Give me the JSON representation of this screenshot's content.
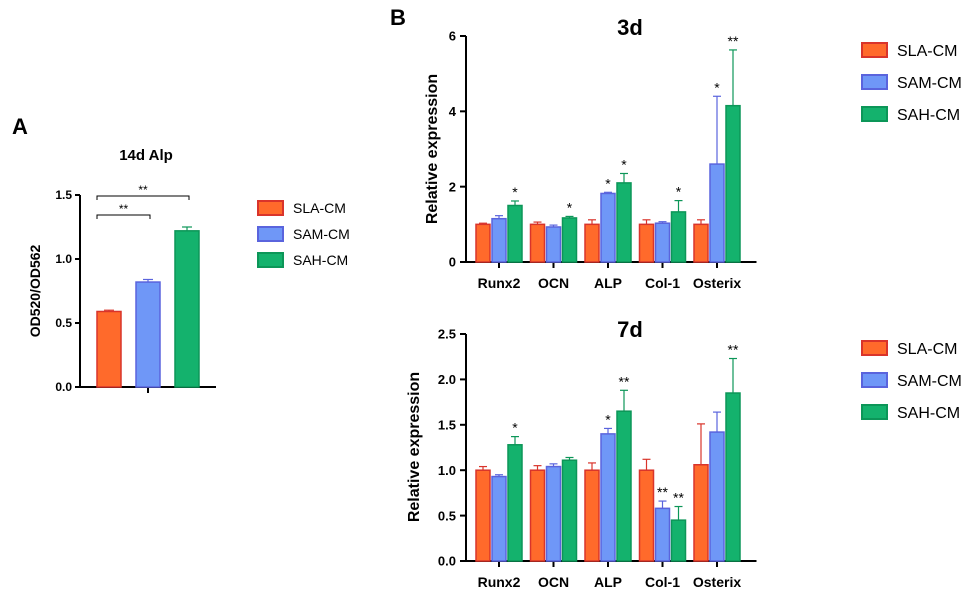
{
  "legend_items": [
    {
      "label": "SLA-CM",
      "color": "#ff6a2b",
      "border": "#d9342b"
    },
    {
      "label": "SAM-CM",
      "color": "#6f97f7",
      "border": "#5a64dd"
    },
    {
      "label": "SAH-CM",
      "color": "#14b26d",
      "border": "#0c9658"
    }
  ],
  "chart_data": [
    {
      "panel_letter": "A",
      "type": "bar",
      "title": "14d Alp",
      "ylabel": "OD520/OD562",
      "xlabel": "",
      "ylim": [
        0,
        1.5
      ],
      "yticks": [
        "0.0",
        "0.5",
        "1.0",
        "1.5"
      ],
      "categories": [
        ""
      ],
      "series": [
        {
          "name": "SLA-CM",
          "values": [
            0.59
          ],
          "errors": [
            0.01
          ]
        },
        {
          "name": "SAM-CM",
          "values": [
            0.82
          ],
          "errors": [
            0.02
          ]
        },
        {
          "name": "SAH-CM",
          "values": [
            1.22
          ],
          "errors": [
            0.03
          ]
        }
      ],
      "significance_brackets": [
        {
          "from": "SLA-CM",
          "to": "SAM-CM",
          "label": "**"
        },
        {
          "from": "SLA-CM",
          "to": "SAH-CM",
          "label": "**"
        }
      ],
      "grid": false,
      "legend": "right"
    },
    {
      "panel_letter": "B",
      "type": "bar",
      "title": "3d",
      "ylabel": "Relative expression",
      "xlabel": "",
      "ylim": [
        0,
        6
      ],
      "yticks": [
        "0",
        "2",
        "4",
        "6"
      ],
      "categories": [
        "Runx2",
        "OCN",
        "ALP",
        "Col-1",
        "Osterix"
      ],
      "series": [
        {
          "name": "SLA-CM",
          "values": [
            1.0,
            1.0,
            1.0,
            1.0,
            1.0
          ],
          "errors": [
            0.03,
            0.06,
            0.12,
            0.12,
            0.12
          ],
          "labels": [
            "",
            "",
            "",
            "",
            ""
          ]
        },
        {
          "name": "SAM-CM",
          "values": [
            1.15,
            0.93,
            1.82,
            1.03,
            2.6
          ],
          "errors": [
            0.08,
            0.05,
            0.03,
            0.04,
            1.8
          ],
          "labels": [
            "",
            "",
            "*",
            "",
            "*"
          ]
        },
        {
          "name": "SAH-CM",
          "values": [
            1.5,
            1.17,
            2.1,
            1.33,
            4.15
          ],
          "errors": [
            0.12,
            0.04,
            0.25,
            0.3,
            1.48
          ],
          "labels": [
            "*",
            "*",
            "*",
            "*",
            "**"
          ]
        }
      ],
      "grid": false,
      "legend": "right"
    },
    {
      "panel_letter": "",
      "type": "bar",
      "title": "7d",
      "ylabel": "Relative expression",
      "xlabel": "",
      "ylim": [
        0,
        2.5
      ],
      "yticks": [
        "0.0",
        "0.5",
        "1.0",
        "1.5",
        "2.0",
        "2.5"
      ],
      "categories": [
        "Runx2",
        "OCN",
        "ALP",
        "Col-1",
        "Osterix"
      ],
      "series": [
        {
          "name": "SLA-CM",
          "values": [
            1.0,
            1.0,
            1.0,
            1.0,
            1.06
          ],
          "errors": [
            0.04,
            0.05,
            0.08,
            0.12,
            0.45
          ],
          "labels": [
            "",
            "",
            "",
            "",
            ""
          ]
        },
        {
          "name": "SAM-CM",
          "values": [
            0.93,
            1.04,
            1.4,
            0.58,
            1.42
          ],
          "errors": [
            0.02,
            0.03,
            0.06,
            0.08,
            0.22
          ],
          "labels": [
            "",
            "",
            "*",
            "**",
            ""
          ]
        },
        {
          "name": "SAH-CM",
          "values": [
            1.28,
            1.11,
            1.65,
            0.45,
            1.85
          ],
          "errors": [
            0.09,
            0.03,
            0.23,
            0.15,
            0.38
          ],
          "labels": [
            "*",
            "",
            "**",
            "**",
            "**"
          ]
        }
      ],
      "grid": false,
      "legend": "right"
    }
  ]
}
